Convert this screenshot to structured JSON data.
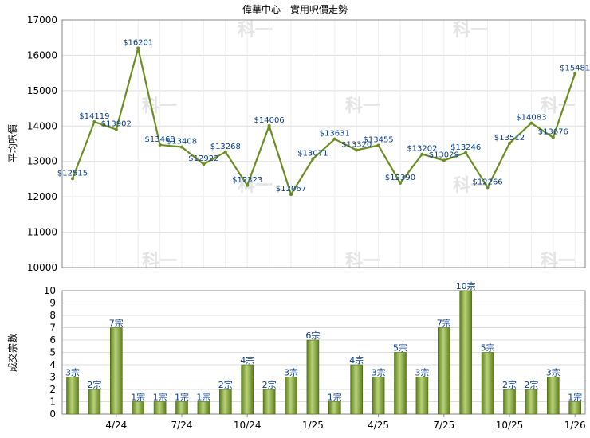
{
  "chart_data": [
    {
      "type": "line",
      "title": "偉華中心 - 實用呎價走勢",
      "ylabel": "平均呎價",
      "ylim": [
        10000,
        17000
      ],
      "yticks": [
        10000,
        11000,
        12000,
        13000,
        14000,
        15000,
        16000,
        17000
      ],
      "grid": true,
      "color": "#6b8e23",
      "values": [
        12515,
        14119,
        13902,
        16201,
        13468,
        13408,
        12922,
        13268,
        12323,
        14006,
        12067,
        13071,
        13631,
        13320,
        13455,
        12390,
        13202,
        13029,
        13246,
        12266,
        13512,
        14083,
        13676,
        15481
      ],
      "labels": [
        "$12515",
        "$14119",
        "$13902",
        "$16201",
        "$13468",
        "$13408",
        "$12922",
        "$13268",
        "$12323",
        "$14006",
        "$12067",
        "$13071",
        "$13631",
        "$13320",
        "$13455",
        "$12390",
        "$13202",
        "$13029",
        "$13246",
        "$12266",
        "$13512",
        "$14083",
        "$13676",
        "$15481"
      ]
    },
    {
      "type": "bar",
      "ylabel": "成交宗數",
      "ylim": [
        0,
        10
      ],
      "yticks": [
        0,
        1,
        2,
        3,
        4,
        5,
        6,
        7,
        8,
        9,
        10
      ],
      "grid": true,
      "color": "#7a9a2e",
      "values": [
        3,
        2,
        7,
        1,
        1,
        1,
        1,
        2,
        4,
        2,
        3,
        6,
        1,
        4,
        3,
        5,
        3,
        7,
        10,
        5,
        2,
        2,
        3,
        1
      ],
      "labels": [
        "3宗",
        "2宗",
        "7宗",
        "1宗",
        "1宗",
        "1宗",
        "1宗",
        "2宗",
        "4宗",
        "2宗",
        "3宗",
        "6宗",
        "1宗",
        "4宗",
        "3宗",
        "5宗",
        "3宗",
        "7宗",
        "10宗",
        "5宗",
        "2宗",
        "2宗",
        "3宗",
        "1宗"
      ],
      "x_ticks": [
        {
          "index": 2,
          "label": "4/24"
        },
        {
          "index": 5,
          "label": "7/24"
        },
        {
          "index": 8,
          "label": "10/24"
        },
        {
          "index": 11,
          "label": "1/25"
        },
        {
          "index": 14,
          "label": "4/25"
        },
        {
          "index": 17,
          "label": "7/25"
        },
        {
          "index": 20,
          "label": "10/25"
        },
        {
          "index": 23,
          "label": "1/26"
        }
      ]
    }
  ],
  "watermark": "科一"
}
